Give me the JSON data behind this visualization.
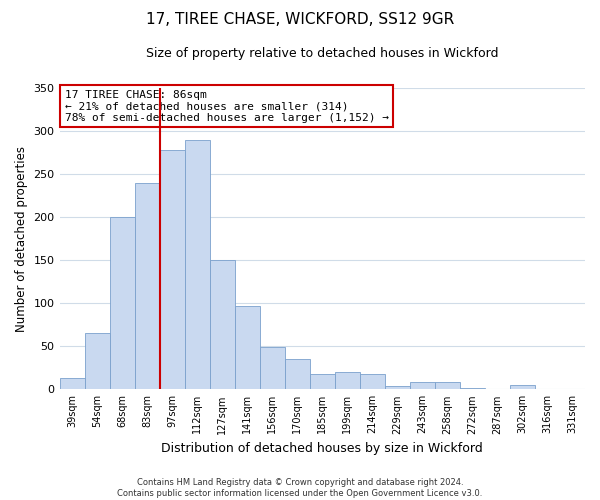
{
  "title": "17, TIREE CHASE, WICKFORD, SS12 9GR",
  "subtitle": "Size of property relative to detached houses in Wickford",
  "xlabel": "Distribution of detached houses by size in Wickford",
  "ylabel": "Number of detached properties",
  "categories": [
    "39sqm",
    "54sqm",
    "68sqm",
    "83sqm",
    "97sqm",
    "112sqm",
    "127sqm",
    "141sqm",
    "156sqm",
    "170sqm",
    "185sqm",
    "199sqm",
    "214sqm",
    "229sqm",
    "243sqm",
    "258sqm",
    "272sqm",
    "287sqm",
    "302sqm",
    "316sqm",
    "331sqm"
  ],
  "values": [
    13,
    65,
    200,
    240,
    278,
    290,
    150,
    97,
    49,
    35,
    18,
    20,
    18,
    4,
    8,
    8,
    2,
    0,
    5,
    0,
    0
  ],
  "bar_color": "#c9d9f0",
  "bar_edge_color": "#7aa0cc",
  "vline_x_index": 4,
  "vline_color": "#cc0000",
  "ylim": [
    0,
    350
  ],
  "yticks": [
    0,
    50,
    100,
    150,
    200,
    250,
    300,
    350
  ],
  "annotation_title": "17 TIREE CHASE: 86sqm",
  "annotation_line1": "← 21% of detached houses are smaller (314)",
  "annotation_line2": "78% of semi-detached houses are larger (1,152) →",
  "annotation_box_color": "#ffffff",
  "annotation_box_edge_color": "#cc0000",
  "footer_line1": "Contains HM Land Registry data © Crown copyright and database right 2024.",
  "footer_line2": "Contains public sector information licensed under the Open Government Licence v3.0.",
  "background_color": "#ffffff",
  "grid_color": "#d0dce8"
}
